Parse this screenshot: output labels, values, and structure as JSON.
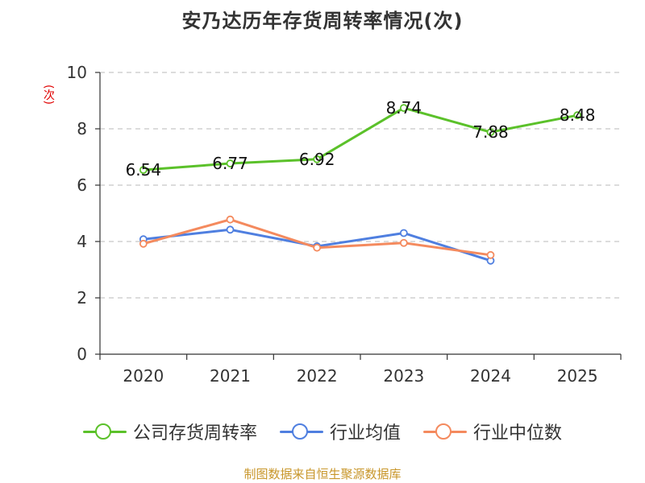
{
  "title": "安乃达历年存货周转率情况(次)",
  "footer": "制图数据来自恒生聚源数据库",
  "chart_data": {
    "type": "line",
    "title": "安乃达历年存货周转率情况(次)",
    "ylabel": "(次)",
    "xlabel": "",
    "ylim": [
      0,
      10
    ],
    "yticks": [
      0,
      2,
      4,
      6,
      8,
      10
    ],
    "grid": true,
    "legend_position": "bottom",
    "categories": [
      "2020",
      "2021",
      "2022",
      "2023",
      "2024",
      "2025"
    ],
    "series": [
      {
        "name": "公司存货周转率",
        "color": "#5bc12a",
        "values": [
          6.54,
          6.77,
          6.92,
          8.74,
          7.88,
          8.48
        ],
        "labels": [
          "6.54",
          "6.77",
          "6.92",
          "8.74",
          "7.88",
          "8.48"
        ]
      },
      {
        "name": "行业均值",
        "color": "#4f7fe0",
        "values": [
          4.08,
          4.42,
          3.83,
          4.3,
          3.32,
          null
        ]
      },
      {
        "name": "行业中位数",
        "color": "#f48a5e",
        "values": [
          3.92,
          4.78,
          3.78,
          3.95,
          3.52,
          null
        ]
      }
    ]
  }
}
